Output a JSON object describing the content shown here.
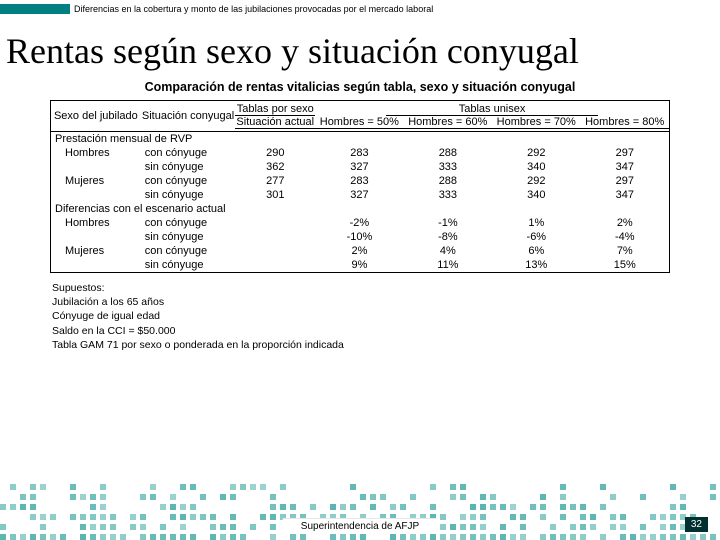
{
  "topbar": {
    "accent_color": "#008080",
    "text": "Diferencias en la cobertura y monto de las jubilaciones provocadas por el mercado laboral"
  },
  "title": "Rentas según sexo y situación conyugal",
  "table": {
    "title": "Comparación de rentas vitalicias según tabla, sexo y situación conyugal",
    "headers": {
      "sexo": "Sexo del jubilado",
      "situacion": "Situación conyugal",
      "tablas_sexo": "Tablas por sexo",
      "situacion_actual": "Situación actual",
      "tablas_unisex": "Tablas unisex",
      "unisex_cols": [
        "Hombres = 50%",
        "Hombres = 60%",
        "Hombres = 70%",
        "Hombres = 80%"
      ]
    },
    "section1": "Prestación mensual de RVP",
    "section2": "Diferencias con el escenario actual",
    "rows1": [
      {
        "sexo": "Hombres",
        "sit": "con cónyuge",
        "actual": "290",
        "u": [
          "283",
          "288",
          "292",
          "297"
        ]
      },
      {
        "sexo": "",
        "sit": "sin cónyuge",
        "actual": "362",
        "u": [
          "327",
          "333",
          "340",
          "347"
        ]
      },
      {
        "sexo": "Mujeres",
        "sit": "con cónyuge",
        "actual": "277",
        "u": [
          "283",
          "288",
          "292",
          "297"
        ]
      },
      {
        "sexo": "",
        "sit": "sin cónyuge",
        "actual": "301",
        "u": [
          "327",
          "333",
          "340",
          "347"
        ]
      }
    ],
    "rows2": [
      {
        "sexo": "Hombres",
        "sit": "con cónyuge",
        "actual": "",
        "u": [
          "-2%",
          "-1%",
          "1%",
          "2%"
        ]
      },
      {
        "sexo": "",
        "sit": "sin cónyuge",
        "actual": "",
        "u": [
          "-10%",
          "-8%",
          "-6%",
          "-4%"
        ]
      },
      {
        "sexo": "Mujeres",
        "sit": "con cónyuge",
        "actual": "",
        "u": [
          "2%",
          "4%",
          "6%",
          "7%"
        ]
      },
      {
        "sexo": "",
        "sit": "sin cónyuge",
        "actual": "",
        "u": [
          "9%",
          "11%",
          "13%",
          "15%"
        ]
      }
    ]
  },
  "assumptions": {
    "label": "Supuestos:",
    "lines": [
      "Jubilación a los 65 años",
      "Cónyuge de igual edad",
      "Saldo en la CCI = $50.000",
      "Tabla GAM 71 por sexo o ponderada en la proporción indicada"
    ]
  },
  "footer": {
    "org": "Superintendencia de AFJP",
    "page": "32",
    "pattern_color": "#5ab5b0"
  }
}
